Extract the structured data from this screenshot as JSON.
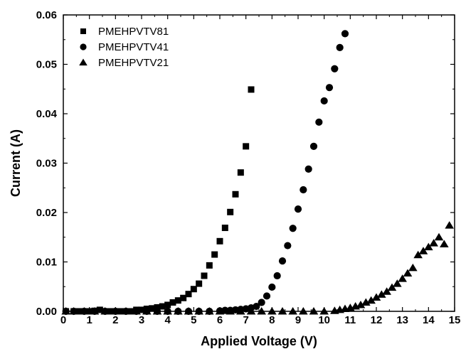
{
  "chart_data": {
    "type": "scatter",
    "title": "",
    "xlabel": "Applied Voltage (V)",
    "ylabel": "Current (A)",
    "xlim": [
      0,
      15
    ],
    "ylim": [
      0,
      0.06
    ],
    "x_ticks": [
      "0",
      "1",
      "2",
      "3",
      "4",
      "5",
      "6",
      "7",
      "8",
      "9",
      "10",
      "11",
      "12",
      "13",
      "14",
      "15"
    ],
    "y_ticks": [
      "0.00",
      "0.01",
      "0.02",
      "0.03",
      "0.04",
      "0.05",
      "0.06"
    ],
    "grid": false,
    "legend_position": "top-left",
    "series": [
      {
        "name": "PMEHPVTV81",
        "marker": "square",
        "color": "#000000",
        "points": [
          [
            0.1,
            0.0
          ],
          [
            0.4,
            0.0
          ],
          [
            0.6,
            0.0
          ],
          [
            0.8,
            0.0
          ],
          [
            1.0,
            0.0
          ],
          [
            1.2,
            0.0001
          ],
          [
            1.4,
            0.0003
          ],
          [
            1.6,
            0.0
          ],
          [
            1.8,
            0.0
          ],
          [
            2.0,
            0.0
          ],
          [
            2.2,
            0.0
          ],
          [
            2.4,
            0.0
          ],
          [
            2.6,
            0.0
          ],
          [
            2.8,
            0.0003
          ],
          [
            3.0,
            0.0003
          ],
          [
            3.2,
            0.0005
          ],
          [
            3.4,
            0.0006
          ],
          [
            3.6,
            0.0008
          ],
          [
            3.8,
            0.001
          ],
          [
            4.0,
            0.0013
          ],
          [
            4.2,
            0.0018
          ],
          [
            4.4,
            0.0022
          ],
          [
            4.6,
            0.0027
          ],
          [
            4.8,
            0.0035
          ],
          [
            5.0,
            0.0045
          ],
          [
            5.2,
            0.0056
          ],
          [
            5.4,
            0.0072
          ],
          [
            5.6,
            0.0093
          ],
          [
            5.8,
            0.0115
          ],
          [
            6.0,
            0.0142
          ],
          [
            6.2,
            0.0169
          ],
          [
            6.4,
            0.0201
          ],
          [
            6.6,
            0.0237
          ],
          [
            6.8,
            0.0281
          ],
          [
            7.0,
            0.0334
          ],
          [
            7.2,
            0.0449
          ]
        ]
      },
      {
        "name": "PMEHPVTV41",
        "marker": "circle",
        "color": "#000000",
        "points": [
          [
            0.1,
            0.0
          ],
          [
            0.4,
            0.0
          ],
          [
            0.8,
            0.0
          ],
          [
            1.2,
            0.0
          ],
          [
            1.6,
            0.0
          ],
          [
            2.0,
            0.0
          ],
          [
            2.4,
            0.0
          ],
          [
            2.8,
            0.0
          ],
          [
            3.2,
            0.0
          ],
          [
            3.6,
            0.0
          ],
          [
            4.0,
            0.0
          ],
          [
            4.4,
            0.0
          ],
          [
            4.8,
            0.0
          ],
          [
            5.2,
            0.0
          ],
          [
            5.6,
            0.0
          ],
          [
            6.0,
            0.0001
          ],
          [
            6.2,
            0.0002
          ],
          [
            6.4,
            0.0002
          ],
          [
            6.6,
            0.0003
          ],
          [
            6.8,
            0.0004
          ],
          [
            7.0,
            0.0005
          ],
          [
            7.2,
            0.0007
          ],
          [
            7.4,
            0.001
          ],
          [
            7.6,
            0.0018
          ],
          [
            7.8,
            0.0031
          ],
          [
            8.0,
            0.0049
          ],
          [
            8.2,
            0.0072
          ],
          [
            8.4,
            0.0102
          ],
          [
            8.6,
            0.0133
          ],
          [
            8.8,
            0.0168
          ],
          [
            9.0,
            0.0207
          ],
          [
            9.2,
            0.0246
          ],
          [
            9.4,
            0.0288
          ],
          [
            9.6,
            0.0334
          ],
          [
            9.8,
            0.0383
          ],
          [
            10.0,
            0.0426
          ],
          [
            10.2,
            0.0453
          ],
          [
            10.4,
            0.0491
          ],
          [
            10.6,
            0.0534
          ],
          [
            10.8,
            0.0562
          ]
        ]
      },
      {
        "name": "PMEHPVTV21",
        "marker": "triangle",
        "color": "#000000",
        "points": [
          [
            0.1,
            0.0
          ],
          [
            0.4,
            0.0
          ],
          [
            0.8,
            0.0
          ],
          [
            1.2,
            0.0
          ],
          [
            1.6,
            0.0
          ],
          [
            2.0,
            0.0
          ],
          [
            2.4,
            0.0
          ],
          [
            2.8,
            0.0
          ],
          [
            3.2,
            0.0
          ],
          [
            3.6,
            0.0
          ],
          [
            4.0,
            0.0
          ],
          [
            4.4,
            0.0
          ],
          [
            4.8,
            0.0
          ],
          [
            5.2,
            0.0
          ],
          [
            5.6,
            0.0
          ],
          [
            6.0,
            0.0
          ],
          [
            6.4,
            0.0
          ],
          [
            6.8,
            0.0
          ],
          [
            7.2,
            0.0
          ],
          [
            7.6,
            0.0
          ],
          [
            8.0,
            0.0
          ],
          [
            8.4,
            0.0
          ],
          [
            8.8,
            0.0
          ],
          [
            9.2,
            0.0
          ],
          [
            9.6,
            0.0
          ],
          [
            10.0,
            0.0
          ],
          [
            10.4,
            0.0001
          ],
          [
            10.6,
            0.0003
          ],
          [
            10.8,
            0.0005
          ],
          [
            11.0,
            0.0007
          ],
          [
            11.2,
            0.001
          ],
          [
            11.4,
            0.0013
          ],
          [
            11.6,
            0.0018
          ],
          [
            11.8,
            0.0022
          ],
          [
            12.0,
            0.0028
          ],
          [
            12.2,
            0.0034
          ],
          [
            12.4,
            0.004
          ],
          [
            12.6,
            0.0048
          ],
          [
            12.8,
            0.0056
          ],
          [
            13.0,
            0.0066
          ],
          [
            13.2,
            0.0077
          ],
          [
            13.4,
            0.0088
          ],
          [
            13.6,
            0.0114
          ],
          [
            13.8,
            0.0122
          ],
          [
            14.0,
            0.013
          ],
          [
            14.2,
            0.0138
          ],
          [
            14.4,
            0.015
          ],
          [
            14.6,
            0.0136
          ],
          [
            14.8,
            0.0174
          ]
        ]
      }
    ]
  }
}
